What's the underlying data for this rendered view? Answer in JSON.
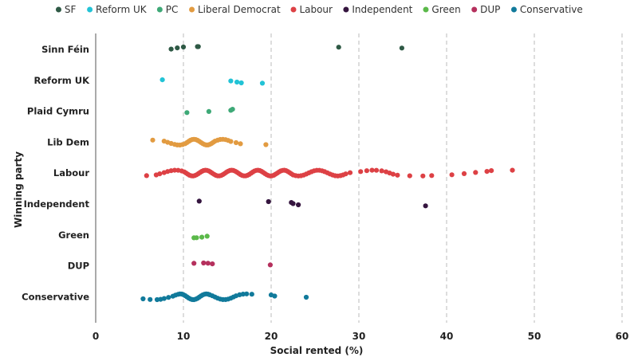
{
  "chart_data": {
    "type": "scatter",
    "xlabel": "Social rented (%)",
    "ylabel": "Winning party",
    "xlim": [
      0,
      60
    ],
    "xticks": [
      0,
      10,
      20,
      30,
      40,
      50,
      60
    ],
    "grid": "vertical dashed",
    "legend_position": "top",
    "categories": [
      "Sinn Féin",
      "Reform UK",
      "Plaid Cymru",
      "Lib Dem",
      "Labour",
      "Independent",
      "Green",
      "DUP",
      "Conservative"
    ],
    "series": [
      {
        "name": "SF",
        "category": "Sinn Féin",
        "color": "#2e5945",
        "values": [
          8.6,
          9.3,
          10.0,
          11.6,
          11.7,
          27.7,
          34.9
        ]
      },
      {
        "name": "Reform UK",
        "category": "Reform UK",
        "color": "#22c3d6",
        "values": [
          7.6,
          15.4,
          16.1,
          16.6,
          19.0
        ]
      },
      {
        "name": "PC",
        "category": "Plaid Cymru",
        "color": "#3ea977",
        "values": [
          10.4,
          12.9,
          15.4,
          15.6
        ]
      },
      {
        "name": "Liberal Democrat",
        "category": "Lib Dem",
        "color": "#e29b41",
        "values": [
          6.5,
          7.8,
          8.2,
          8.6,
          9.0,
          9.3,
          9.6,
          9.9,
          10.2,
          10.4,
          10.6,
          10.8,
          11.0,
          11.2,
          11.4,
          11.6,
          11.8,
          12.0,
          12.2,
          12.4,
          12.6,
          12.8,
          13.0,
          13.2,
          13.4,
          13.6,
          13.9,
          14.2,
          14.5,
          14.8,
          15.1,
          15.4,
          16.0,
          16.5,
          19.4
        ]
      },
      {
        "name": "Labour",
        "category": "Labour",
        "color": "#dd4145",
        "values": [
          5.8,
          6.9,
          7.3,
          7.8,
          8.2,
          8.6,
          9.0,
          9.4,
          9.8,
          10.1,
          10.3,
          10.5,
          10.7,
          10.9,
          11.1,
          11.3,
          11.5,
          11.7,
          11.9,
          12.1,
          12.3,
          12.5,
          12.7,
          12.9,
          13.1,
          13.3,
          13.5,
          13.7,
          13.9,
          14.1,
          14.3,
          14.5,
          14.7,
          14.9,
          15.1,
          15.3,
          15.5,
          15.7,
          15.9,
          16.1,
          16.3,
          16.5,
          16.7,
          16.9,
          17.1,
          17.3,
          17.5,
          17.7,
          17.9,
          18.1,
          18.3,
          18.5,
          18.7,
          18.9,
          19.1,
          19.3,
          19.5,
          19.7,
          19.9,
          20.1,
          20.3,
          20.5,
          20.7,
          20.9,
          21.1,
          21.3,
          21.5,
          21.7,
          21.9,
          22.1,
          22.3,
          22.5,
          22.8,
          23.1,
          23.4,
          23.7,
          24.0,
          24.3,
          24.6,
          24.9,
          25.2,
          25.5,
          25.8,
          26.1,
          26.4,
          26.7,
          27.0,
          27.3,
          27.6,
          27.9,
          28.2,
          28.5,
          29.0,
          30.2,
          30.9,
          31.5,
          32.0,
          32.6,
          33.1,
          33.5,
          33.9,
          34.4,
          35.8,
          37.3,
          38.3,
          40.6,
          42.0,
          43.3,
          44.6,
          45.1,
          47.5
        ]
      },
      {
        "name": "Independent",
        "category": "Independent",
        "color": "#35153f",
        "values": [
          11.8,
          19.7,
          22.3,
          22.5,
          23.1,
          37.6
        ]
      },
      {
        "name": "Green",
        "category": "Green",
        "color": "#5bb94a",
        "values": [
          11.2,
          11.5,
          12.1,
          12.7
        ]
      },
      {
        "name": "DUP",
        "category": "DUP",
        "color": "#b5305d",
        "values": [
          11.2,
          12.3,
          12.8,
          13.3,
          19.9
        ]
      },
      {
        "name": "Conservative",
        "category": "Conservative",
        "color": "#117a9b",
        "values": [
          5.4,
          6.2,
          7.0,
          7.4,
          7.8,
          8.3,
          8.8,
          9.1,
          9.4,
          9.6,
          9.8,
          10.0,
          10.2,
          10.4,
          10.6,
          10.8,
          11.0,
          11.2,
          11.4,
          11.6,
          11.8,
          12.0,
          12.2,
          12.4,
          12.6,
          12.8,
          13.0,
          13.3,
          13.6,
          13.9,
          14.2,
          14.5,
          14.8,
          15.1,
          15.4,
          15.7,
          16.0,
          16.4,
          16.8,
          17.2,
          17.8,
          20.0,
          20.4,
          24.0
        ]
      }
    ]
  }
}
